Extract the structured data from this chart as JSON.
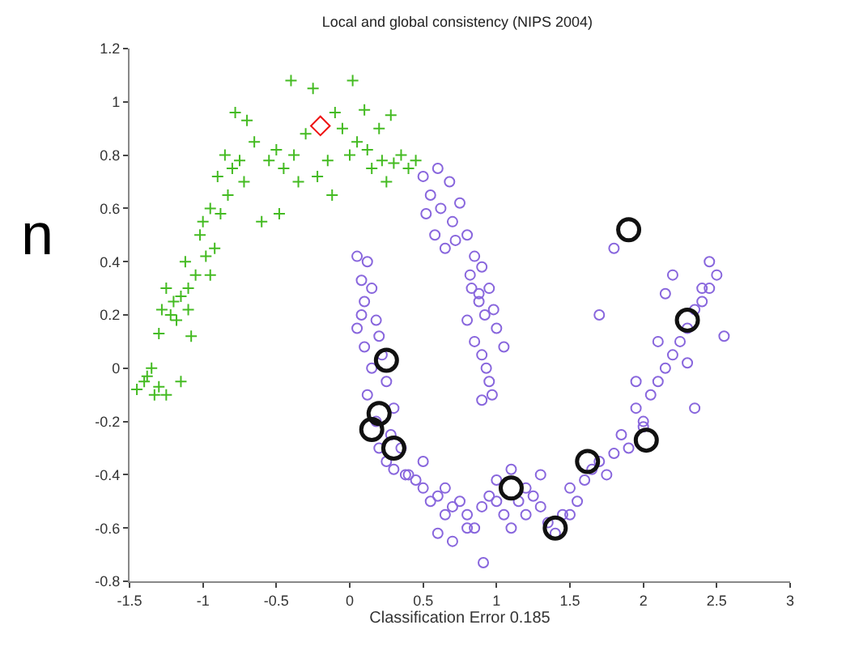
{
  "chart_data": {
    "type": "scatter",
    "title": "Local and global consistency (NIPS 2004)",
    "xlabel": "Classification Error 0.185",
    "xlim": [
      -1.5,
      3
    ],
    "ylim": [
      -0.8,
      1.2
    ],
    "xticks": [
      -1.5,
      -1,
      -0.5,
      0,
      0.5,
      1,
      1.5,
      2,
      2.5,
      3
    ],
    "yticks": [
      -0.8,
      -0.6,
      -0.4,
      -0.2,
      0,
      0.2,
      0.4,
      0.6,
      0.8,
      1,
      1.2
    ],
    "annotations": [
      "n"
    ],
    "series": [
      {
        "color": "#44bb22",
        "marker": "cross",
        "x": [
          -1.45,
          -1.4,
          -1.35,
          -1.33,
          -1.3,
          -1.28,
          -1.25,
          -1.22,
          -1.2,
          -1.18,
          -1.15,
          -1.12,
          -1.1,
          -1.08,
          -1.05,
          -1.02,
          -1.0,
          -0.98,
          -0.95,
          -0.92,
          -0.9,
          -0.88,
          -0.85,
          -0.83,
          -0.8,
          -0.78,
          -0.75,
          -0.72,
          -0.7,
          -0.65,
          -0.6,
          -0.55,
          -0.5,
          -0.48,
          -0.45,
          -0.4,
          -0.38,
          -0.35,
          -0.3,
          -0.25,
          -0.22,
          -0.15,
          -0.12,
          -0.1,
          -0.05,
          0.0,
          0.02,
          0.05,
          0.1,
          0.12,
          0.15,
          0.2,
          0.22,
          0.25,
          0.28,
          0.3,
          0.35,
          0.4,
          0.45,
          -1.38,
          -1.1,
          -0.95,
          -1.15,
          -1.25,
          -1.3
        ],
        "values": [
          -0.08,
          -0.05,
          0.0,
          -0.1,
          0.13,
          0.22,
          0.3,
          0.2,
          0.25,
          0.18,
          0.27,
          0.4,
          0.22,
          0.12,
          0.35,
          0.5,
          0.55,
          0.42,
          0.6,
          0.45,
          0.72,
          0.58,
          0.8,
          0.65,
          0.75,
          0.96,
          0.78,
          0.7,
          0.93,
          0.85,
          0.55,
          0.78,
          0.82,
          0.58,
          0.75,
          1.08,
          0.8,
          0.7,
          0.88,
          1.05,
          0.72,
          0.78,
          0.65,
          0.96,
          0.9,
          0.8,
          1.08,
          0.85,
          0.97,
          0.82,
          0.75,
          0.9,
          0.78,
          0.7,
          0.95,
          0.77,
          0.8,
          0.75,
          0.78,
          -0.03,
          0.3,
          0.35,
          -0.05,
          -0.1,
          -0.07
        ]
      },
      {
        "color": "#8866dd",
        "marker": "circle",
        "x": [
          0.5,
          0.55,
          0.6,
          0.62,
          0.68,
          0.7,
          0.75,
          0.58,
          0.65,
          0.52,
          0.72,
          0.8,
          0.85,
          0.82,
          0.9,
          0.88,
          0.95,
          0.92,
          0.98,
          1.0,
          0.85,
          0.9,
          0.93,
          0.8,
          0.95,
          1.05,
          0.88,
          0.97,
          0.83,
          0.9,
          0.05,
          0.08,
          0.1,
          0.12,
          0.15,
          0.05,
          0.1,
          0.18,
          0.2,
          0.15,
          0.25,
          0.12,
          0.22,
          0.3,
          0.08,
          0.18,
          0.28,
          0.35,
          0.2,
          0.25,
          0.3,
          0.38,
          0.45,
          0.5,
          0.55,
          0.6,
          0.65,
          0.7,
          0.75,
          0.8,
          0.85,
          0.9,
          0.95,
          1.0,
          1.05,
          1.1,
          1.15,
          1.2,
          1.25,
          1.3,
          1.35,
          1.4,
          1.45,
          1.5,
          1.55,
          1.6,
          1.65,
          1.7,
          1.8,
          0.5,
          0.6,
          0.7,
          0.8,
          0.91,
          1.2,
          1.3,
          1.5,
          0.4,
          0.65,
          1.0,
          1.1,
          1.75,
          1.85,
          1.9,
          1.95,
          2.0,
          2.05,
          2.1,
          2.15,
          2.2,
          2.25,
          2.3,
          2.35,
          2.4,
          2.45,
          2.5,
          1.8,
          1.95,
          2.1,
          2.2,
          2.3,
          2.4,
          1.7,
          2.0,
          2.15,
          2.35,
          2.55,
          2.45
        ],
        "values": [
          0.72,
          0.65,
          0.75,
          0.6,
          0.7,
          0.55,
          0.62,
          0.5,
          0.45,
          0.58,
          0.48,
          0.5,
          0.42,
          0.35,
          0.38,
          0.28,
          0.3,
          0.2,
          0.22,
          0.15,
          0.1,
          0.05,
          0.0,
          0.18,
          -0.05,
          0.08,
          0.25,
          -0.1,
          0.3,
          -0.12,
          0.42,
          0.33,
          0.25,
          0.4,
          0.3,
          0.15,
          0.08,
          0.18,
          0.12,
          0.0,
          -0.05,
          -0.1,
          0.05,
          -0.15,
          0.2,
          -0.2,
          -0.25,
          -0.3,
          -0.3,
          -0.35,
          -0.38,
          -0.4,
          -0.42,
          -0.45,
          -0.5,
          -0.48,
          -0.55,
          -0.52,
          -0.5,
          -0.55,
          -0.6,
          -0.52,
          -0.48,
          -0.5,
          -0.55,
          -0.6,
          -0.5,
          -0.55,
          -0.48,
          -0.52,
          -0.58,
          -0.62,
          -0.55,
          -0.45,
          -0.5,
          -0.42,
          -0.38,
          -0.35,
          -0.32,
          -0.35,
          -0.62,
          -0.65,
          -0.6,
          -0.73,
          -0.45,
          -0.4,
          -0.55,
          -0.4,
          -0.45,
          -0.42,
          -0.38,
          -0.4,
          -0.25,
          -0.3,
          -0.15,
          -0.2,
          -0.1,
          -0.05,
          0.0,
          0.05,
          0.1,
          0.15,
          0.22,
          0.25,
          0.3,
          0.35,
          0.45,
          -0.05,
          0.1,
          0.35,
          0.02,
          0.3,
          0.2,
          -0.22,
          0.28,
          -0.15,
          0.12,
          0.4
        ]
      },
      {
        "color": "#ee1111",
        "marker": "diamond",
        "x": [
          -0.2
        ],
        "values": [
          0.91
        ]
      },
      {
        "color": "#111111",
        "marker": "circle",
        "x": [
          0.25,
          0.2,
          0.15,
          0.3,
          1.1,
          1.4,
          1.62,
          2.02,
          2.3,
          1.9
        ],
        "values": [
          0.03,
          -0.17,
          -0.23,
          -0.3,
          -0.45,
          -0.6,
          -0.35,
          -0.27,
          0.18,
          0.52
        ]
      }
    ]
  }
}
